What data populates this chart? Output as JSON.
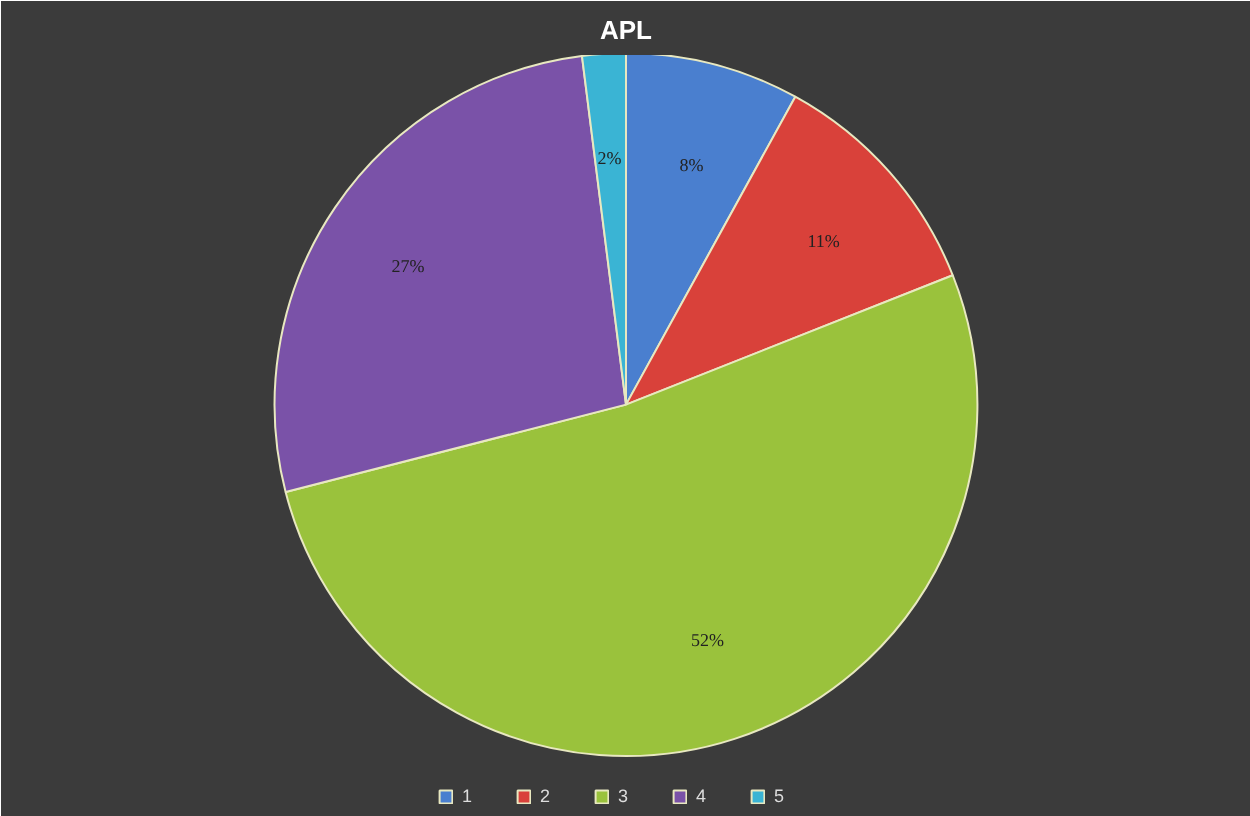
{
  "chart_data": {
    "type": "pie",
    "title": "APL",
    "categories": [
      "1",
      "2",
      "3",
      "4",
      "5"
    ],
    "values": [
      8,
      11,
      52,
      27,
      2
    ],
    "value_labels": [
      "8%",
      "11%",
      "52%",
      "27%",
      "2%"
    ],
    "colors": [
      "#4a7fcf",
      "#d9413a",
      "#9ac23c",
      "#7a52a8",
      "#3ab4d4"
    ],
    "legend": "bottom"
  }
}
